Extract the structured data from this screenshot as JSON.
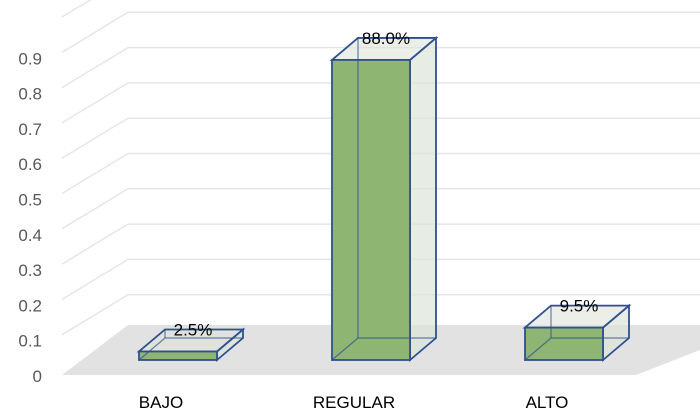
{
  "chart_data": {
    "type": "bar",
    "title": "",
    "xlabel": "",
    "ylabel": "",
    "categories": [
      "BAJO",
      "REGULAR",
      "ALTO"
    ],
    "values": [
      0.025,
      0.88,
      0.095
    ],
    "data_labels": [
      "2.5%",
      "88.0%",
      "9.5%"
    ],
    "y_ticks": [
      "0",
      "0.1",
      "0.2",
      "0.3",
      "0.4",
      "0.5",
      "0.6",
      "0.7",
      "0.8",
      "0.9"
    ],
    "ylim": [
      0,
      1
    ],
    "grid": true,
    "legend": false,
    "style": "3d-column",
    "colors": {
      "bar_fill": "#8FB573",
      "bar_outline": "#2F4F8F",
      "bar_side": "#DDE5D9",
      "floor": "#E2E2E2",
      "gridline": "#E6E6E6"
    }
  }
}
